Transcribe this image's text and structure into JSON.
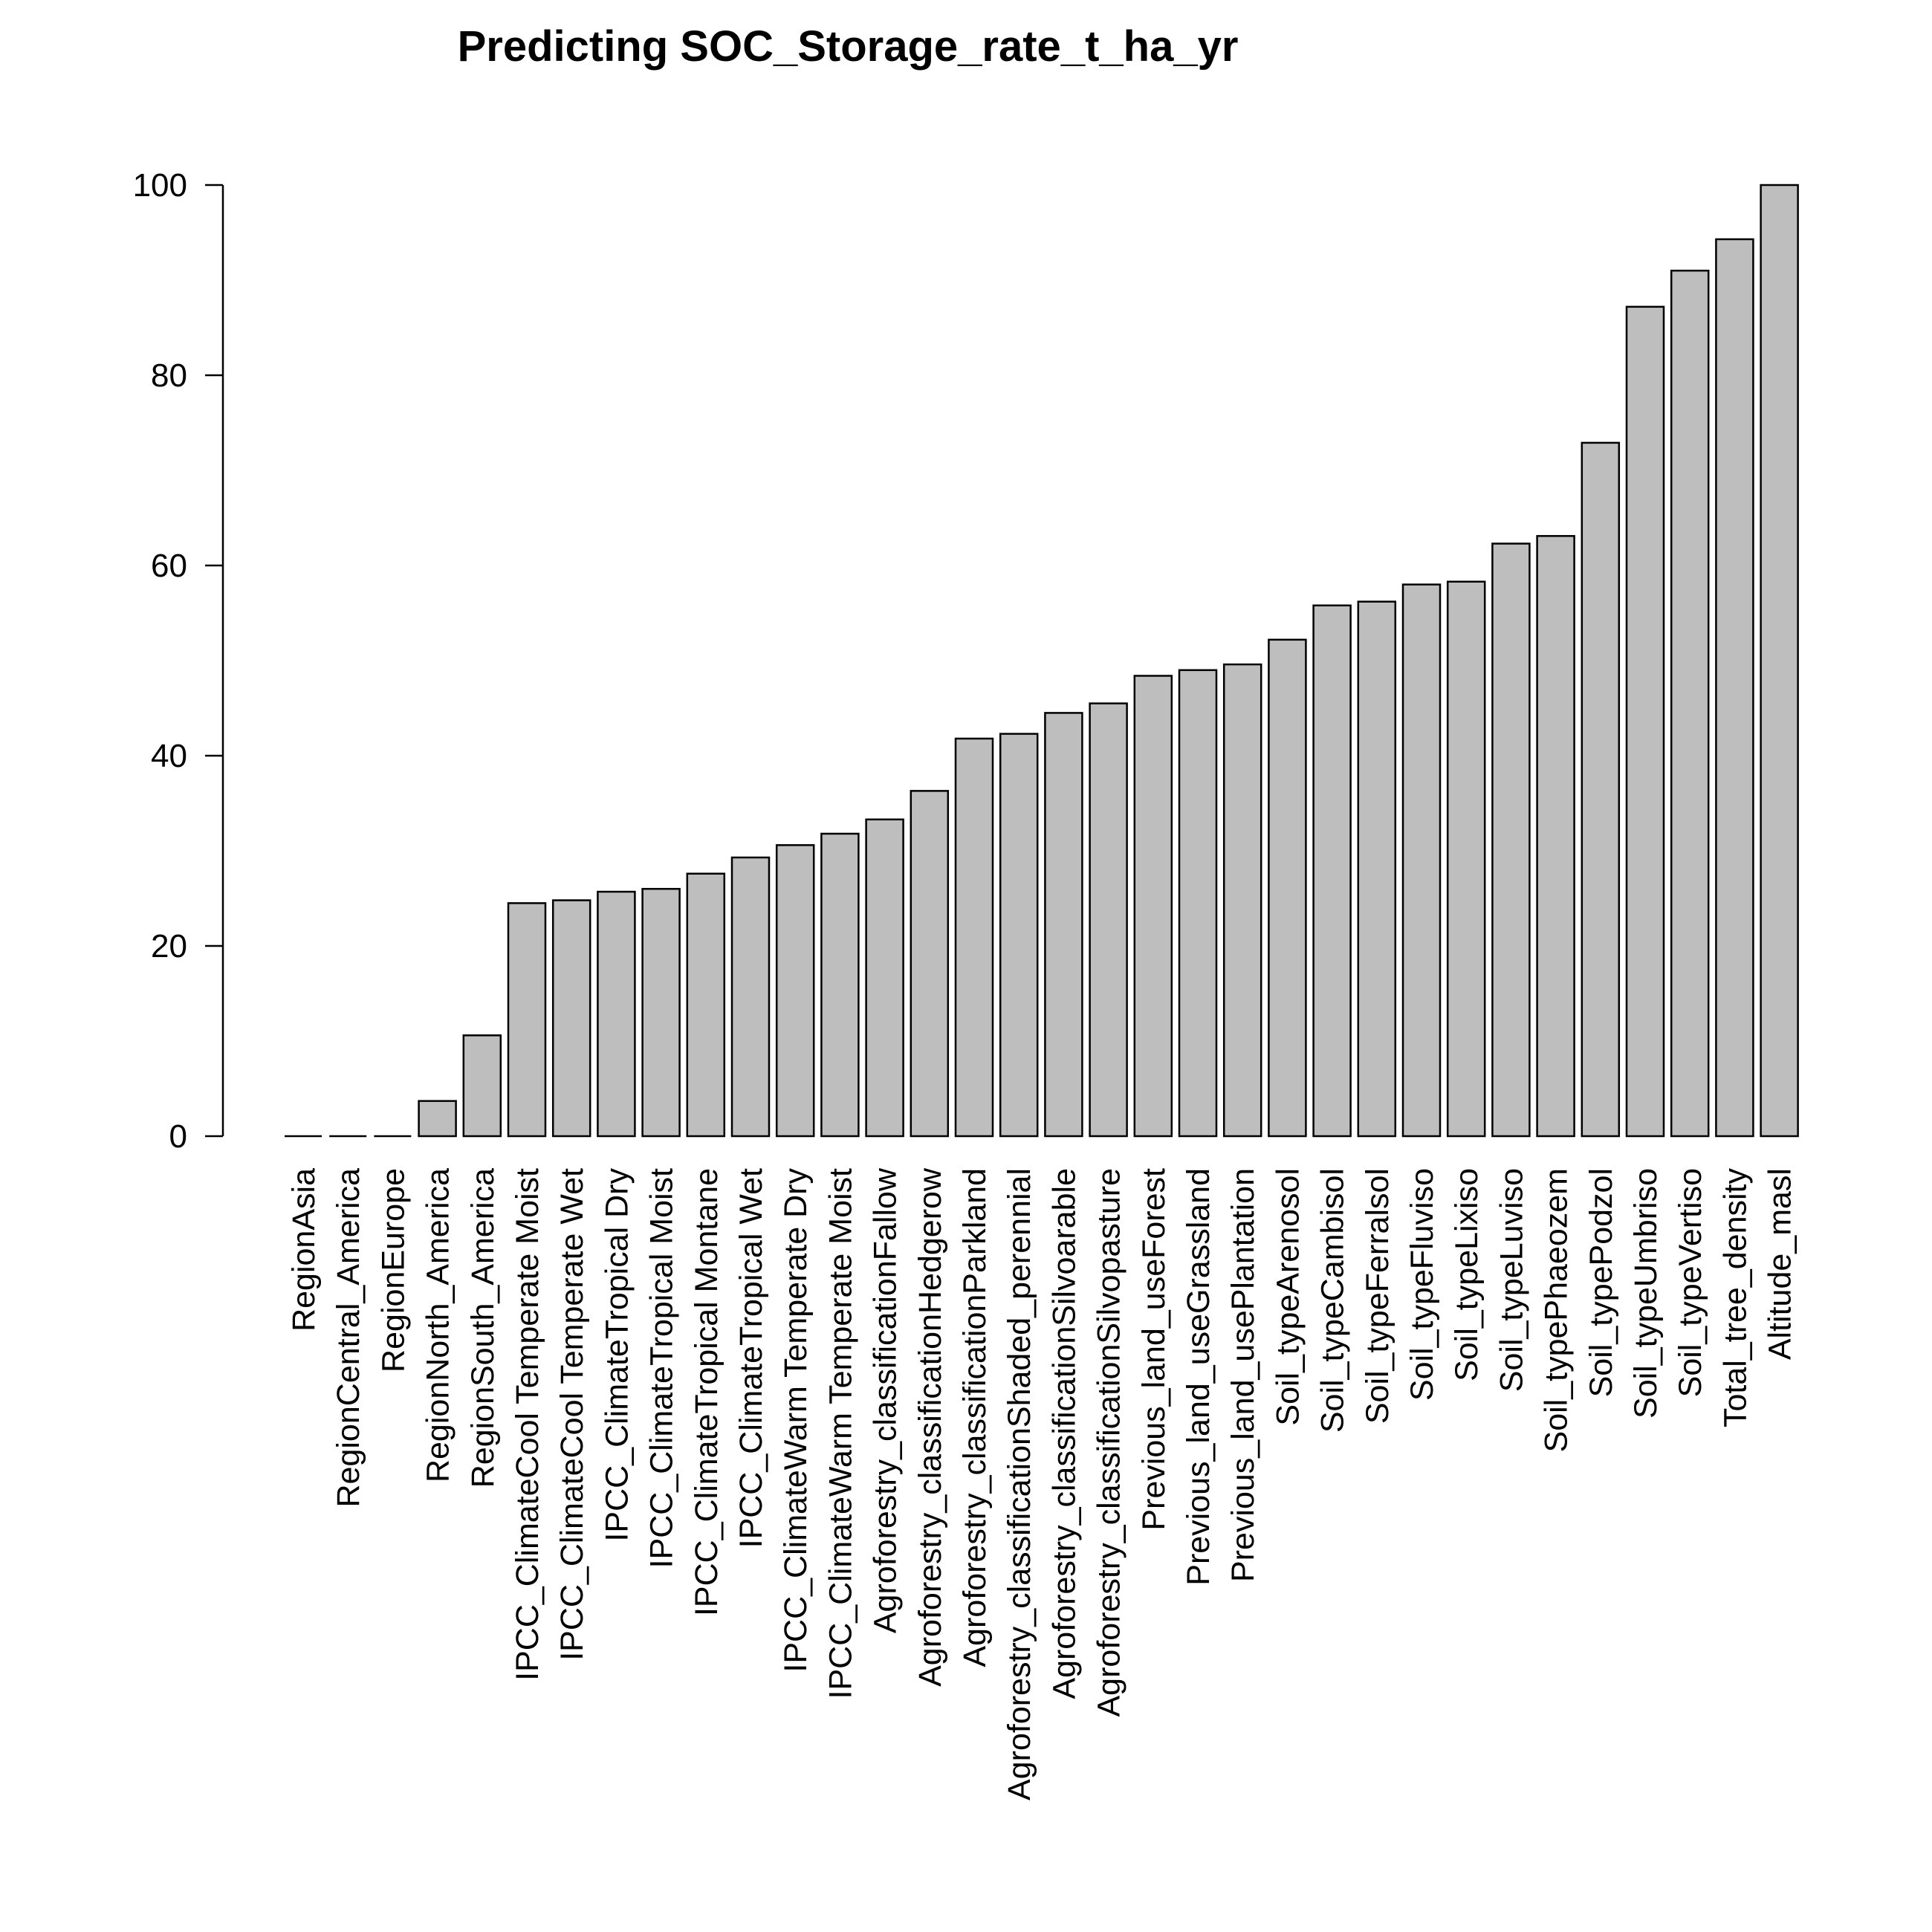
{
  "chart_data": {
    "type": "bar",
    "title": "Predicting SOC_Storage_rate_t_ha_yr",
    "xlabel": "",
    "ylabel": "",
    "ylim": [
      0,
      100
    ],
    "yticks": [
      0,
      20,
      40,
      60,
      80,
      100
    ],
    "grid": false,
    "bar_color": "#bebebe",
    "bar_border_color": "#000000",
    "categories": [
      "RegionAsia",
      "RegionCentral_America",
      "RegionEurope",
      "RegionNorth_America",
      "RegionSouth_America",
      "IPCC_ClimateCool Temperate Moist",
      "IPCC_ClimateCool Temperate Wet",
      "IPCC_ClimateTropical Dry",
      "IPCC_ClimateTropical Moist",
      "IPCC_ClimateTropical Montane",
      "IPCC_ClimateTropical Wet",
      "IPCC_ClimateWarm Temperate Dry",
      "IPCC_ClimateWarm Temperate Moist",
      "Agroforestry_classificationFallow",
      "Agroforestry_classificationHedgerow",
      "Agroforestry_classificationParkland",
      "Agroforestry_classificationShaded_perennial",
      "Agroforestry_classificationSilvoarable",
      "Agroforestry_classificationSilvopasture",
      "Previous_land_useForest",
      "Previous_land_useGrassland",
      "Previous_land_usePlantation",
      "Soil_typeArenosol",
      "Soil_typeCambisol",
      "Soil_typeFerralsol",
      "Soil_typeFluviso",
      "Soil_typeLixiso",
      "Soil_typeLuviso",
      "Soil_typePhaeozem",
      "Soil_typePodzol",
      "Soil_typeUmbriso",
      "Soil_typeVertiso",
      "Total_tree_density",
      "Altitude_masl"
    ],
    "values": [
      0,
      0,
      0,
      3.7,
      10.6,
      24.5,
      24.8,
      25.7,
      26.0,
      27.6,
      29.3,
      30.6,
      31.8,
      33.3,
      36.3,
      41.8,
      42.3,
      44.5,
      45.5,
      48.4,
      49.0,
      49.6,
      52.2,
      55.8,
      56.2,
      58.0,
      58.3,
      62.3,
      63.1,
      72.9,
      87.2,
      91.0,
      94.3,
      100.0
    ]
  }
}
